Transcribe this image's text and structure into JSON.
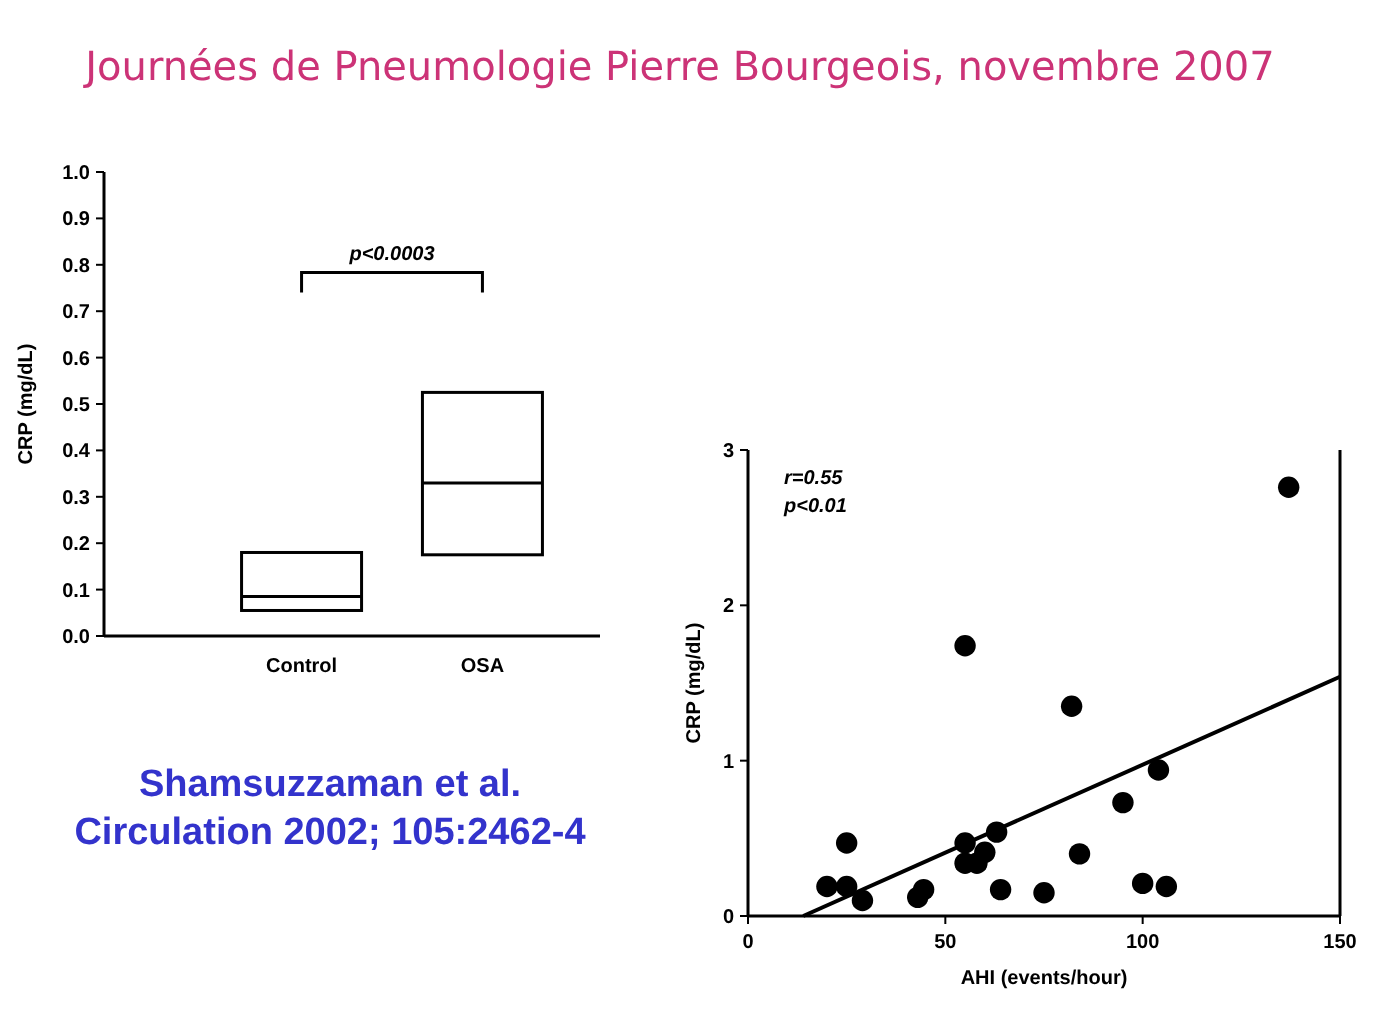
{
  "chart_data": [
    {
      "type": "box",
      "title": "Journées de Pneumologie Pierre Bourgeois, novembre 2007",
      "ylabel": "CRP (mg/dL)",
      "categories": [
        "Control",
        "OSA"
      ],
      "boxes": [
        {
          "low": 0.055,
          "q1": 0.055,
          "median": 0.085,
          "q3": 0.18,
          "high": 0.18
        },
        {
          "low": 0.175,
          "q1": 0.175,
          "median": 0.33,
          "q3": 0.525,
          "high": 0.525
        }
      ],
      "color": "#000000",
      "ylim": [
        0,
        1
      ],
      "yticks": [
        {
          "value": 0,
          "label": "0.0"
        },
        0.1,
        0.2,
        0.3,
        0.4,
        0.5,
        0.6,
        0.7,
        0.8,
        0.9,
        {
          "value": 1,
          "label": "1.0"
        }
      ],
      "annotations": [
        "p<0.0003",
        "Shamsuzzaman et al.\nCirculation 2002; 105:2462-4"
      ]
    },
    {
      "type": "scatter",
      "xlabel": "AHI (events/hour)",
      "ylabel": "CRP (mg/dL)",
      "xlim": [
        0,
        150
      ],
      "xticks": [
        0,
        50,
        100,
        150
      ],
      "ylim": [
        0,
        3
      ],
      "yticks": [
        0,
        1,
        2,
        3
      ],
      "series": [
        {
          "type": "scatter",
          "marker": "circle",
          "color": "#000000",
          "x": [
            20,
            25,
            25,
            29,
            43,
            44.5,
            55,
            55,
            55,
            58,
            60,
            63,
            64,
            75,
            82,
            84,
            95,
            100,
            104,
            106,
            137
          ],
          "values": [
            0.19,
            0.19,
            0.47,
            0.1,
            0.12,
            0.17,
            1.74,
            0.47,
            0.34,
            0.34,
            0.41,
            0.54,
            0.17,
            0.15,
            1.35,
            0.4,
            0.73,
            0.21,
            0.94,
            0.19,
            2.76
          ]
        },
        {
          "type": "line",
          "color": "#000000",
          "x": [
            14,
            150
          ],
          "values": [
            0,
            1.54
          ]
        }
      ],
      "annotations": [
        "r=0.55",
        "p<0.01"
      ]
    }
  ]
}
